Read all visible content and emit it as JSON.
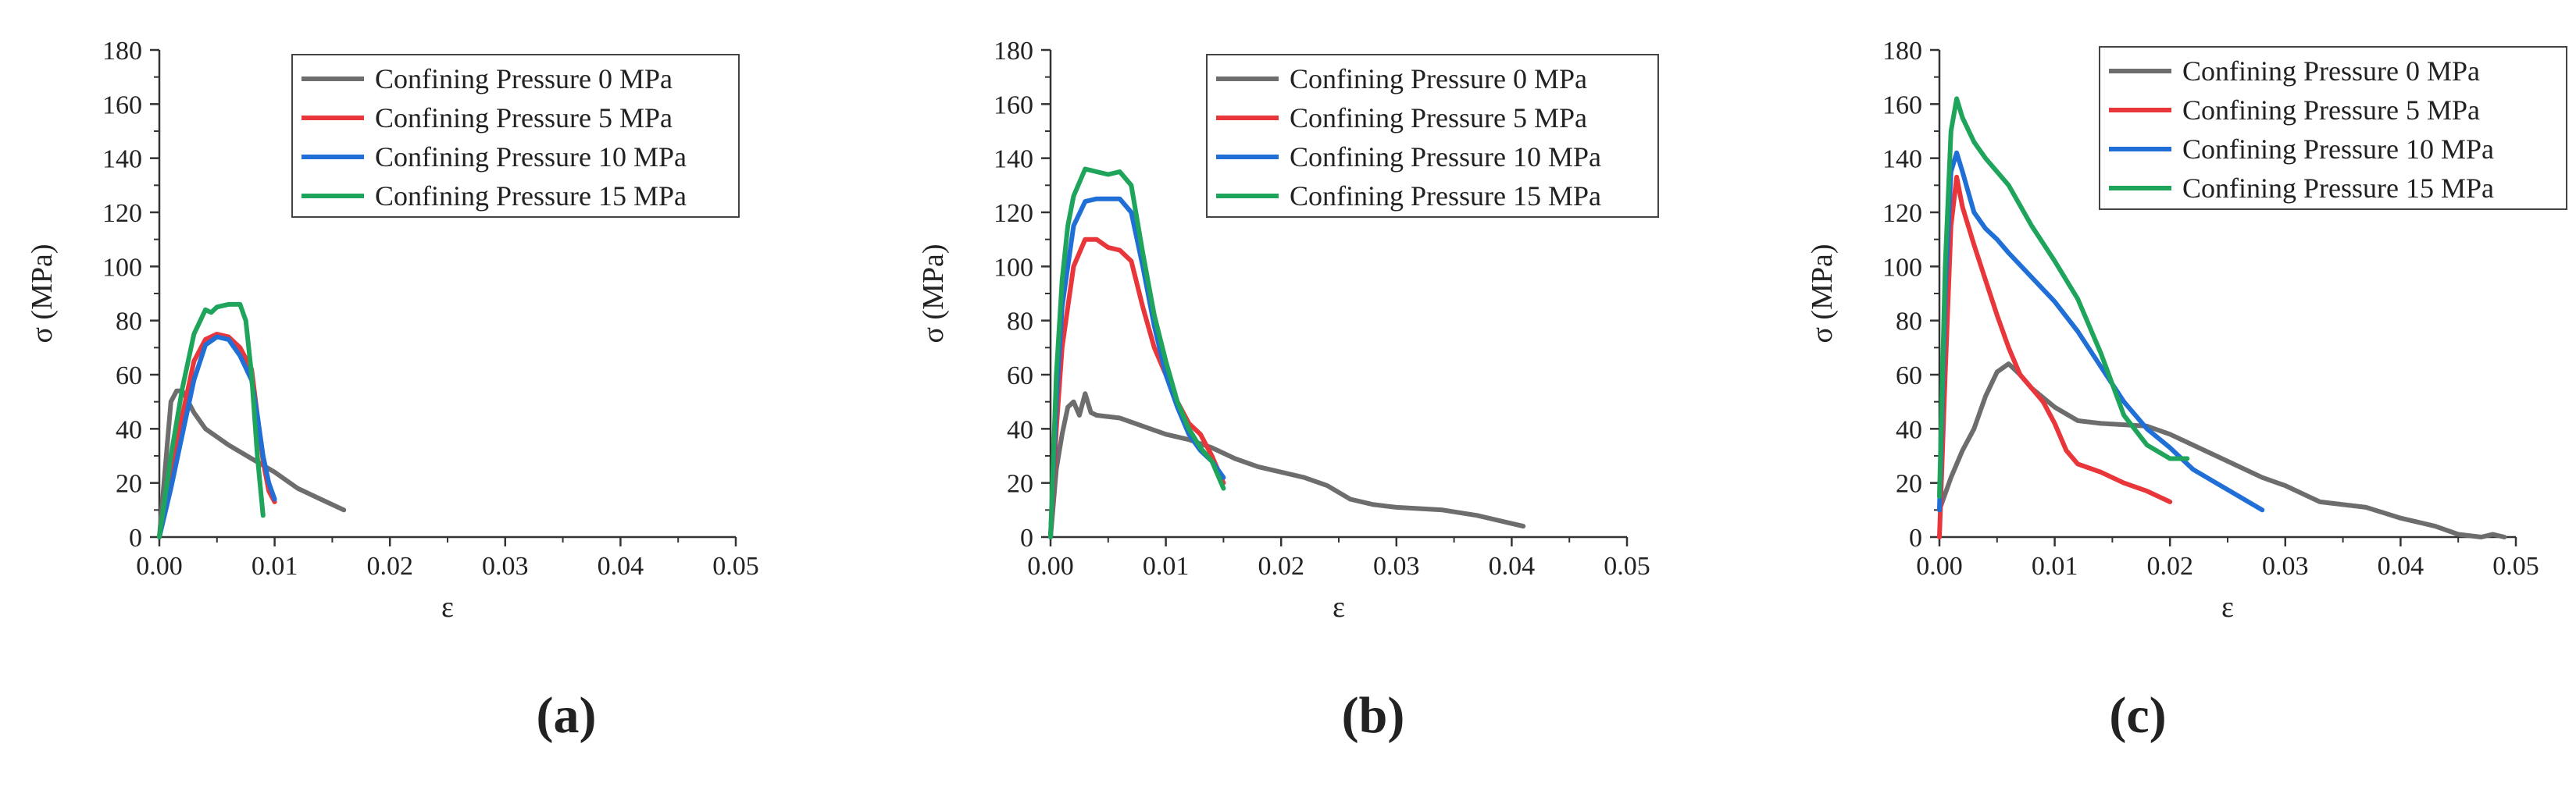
{
  "chart_data": [
    {
      "type": "line",
      "panel_label": "(a)",
      "xlabel": "ε",
      "ylabel": "σ (MPa)",
      "xlim": [
        0,
        0.05
      ],
      "ylim": [
        0,
        180
      ],
      "xticks": [
        "0.00",
        "0.01",
        "0.02",
        "0.03",
        "0.04",
        "0.05"
      ],
      "yticks": [
        "0",
        "20",
        "40",
        "60",
        "80",
        "100",
        "120",
        "140",
        "160",
        "180"
      ],
      "legend_position": "top-right",
      "series": [
        {
          "name": "Confining Pressure 0 MPa",
          "color": "#6d6d6d",
          "points": [
            [
              0,
              0
            ],
            [
              0.0005,
              25
            ],
            [
              0.001,
              50
            ],
            [
              0.0015,
              54
            ],
            [
              0.002,
              54
            ],
            [
              0.003,
              46
            ],
            [
              0.004,
              40
            ],
            [
              0.006,
              34
            ],
            [
              0.008,
              29
            ],
            [
              0.01,
              24
            ],
            [
              0.012,
              18
            ],
            [
              0.014,
              14
            ],
            [
              0.016,
              10
            ]
          ]
        },
        {
          "name": "Confining Pressure 5 MPa",
          "color": "#e8363a",
          "points": [
            [
              0,
              0
            ],
            [
              0.001,
              22
            ],
            [
              0.002,
              45
            ],
            [
              0.003,
              65
            ],
            [
              0.004,
              73
            ],
            [
              0.005,
              75
            ],
            [
              0.006,
              74
            ],
            [
              0.007,
              70
            ],
            [
              0.008,
              62
            ],
            [
              0.0085,
              45
            ],
            [
              0.009,
              28
            ],
            [
              0.0095,
              17
            ],
            [
              0.01,
              13
            ]
          ]
        },
        {
          "name": "Confining Pressure 10 MPa",
          "color": "#1f6fd6",
          "points": [
            [
              0,
              0
            ],
            [
              0.001,
              18
            ],
            [
              0.002,
              38
            ],
            [
              0.003,
              58
            ],
            [
              0.004,
              71
            ],
            [
              0.005,
              74
            ],
            [
              0.006,
              73
            ],
            [
              0.007,
              67
            ],
            [
              0.008,
              58
            ],
            [
              0.0085,
              45
            ],
            [
              0.009,
              30
            ],
            [
              0.0095,
              20
            ],
            [
              0.01,
              14
            ]
          ]
        },
        {
          "name": "Confining Pressure 15 MPa",
          "color": "#1fa55b",
          "points": [
            [
              0,
              0
            ],
            [
              0.001,
              30
            ],
            [
              0.002,
              55
            ],
            [
              0.003,
              75
            ],
            [
              0.004,
              84
            ],
            [
              0.0045,
              83
            ],
            [
              0.005,
              85
            ],
            [
              0.006,
              86
            ],
            [
              0.007,
              86
            ],
            [
              0.0075,
              80
            ],
            [
              0.008,
              60
            ],
            [
              0.0085,
              30
            ],
            [
              0.009,
              8
            ]
          ]
        }
      ]
    },
    {
      "type": "line",
      "panel_label": "(b)",
      "xlabel": "ε",
      "ylabel": "σ (MPa)",
      "xlim": [
        0,
        0.05
      ],
      "ylim": [
        0,
        180
      ],
      "xticks": [
        "0.00",
        "0.01",
        "0.02",
        "0.03",
        "0.04",
        "0.05"
      ],
      "yticks": [
        "0",
        "20",
        "40",
        "60",
        "80",
        "100",
        "120",
        "140",
        "160",
        "180"
      ],
      "legend_position": "top-right",
      "series": [
        {
          "name": "Confining Pressure 0 MPa",
          "color": "#6d6d6d",
          "points": [
            [
              0,
              0
            ],
            [
              0.0005,
              25
            ],
            [
              0.001,
              38
            ],
            [
              0.0015,
              48
            ],
            [
              0.002,
              50
            ],
            [
              0.0025,
              45
            ],
            [
              0.003,
              53
            ],
            [
              0.0035,
              46
            ],
            [
              0.004,
              45
            ],
            [
              0.006,
              44
            ],
            [
              0.008,
              41
            ],
            [
              0.01,
              38
            ],
            [
              0.012,
              36
            ],
            [
              0.014,
              33
            ],
            [
              0.016,
              29
            ],
            [
              0.018,
              26
            ],
            [
              0.02,
              24
            ],
            [
              0.022,
              22
            ],
            [
              0.024,
              19
            ],
            [
              0.026,
              14
            ],
            [
              0.028,
              12
            ],
            [
              0.03,
              11
            ],
            [
              0.034,
              10
            ],
            [
              0.037,
              8
            ],
            [
              0.04,
              5
            ],
            [
              0.041,
              4
            ]
          ]
        },
        {
          "name": "Confining Pressure 5 MPa",
          "color": "#e8363a",
          "points": [
            [
              0,
              0
            ],
            [
              0.0005,
              40
            ],
            [
              0.001,
              70
            ],
            [
              0.0015,
              85
            ],
            [
              0.002,
              100
            ],
            [
              0.003,
              110
            ],
            [
              0.004,
              110
            ],
            [
              0.005,
              107
            ],
            [
              0.006,
              106
            ],
            [
              0.007,
              102
            ],
            [
              0.008,
              85
            ],
            [
              0.009,
              70
            ],
            [
              0.01,
              60
            ],
            [
              0.011,
              50
            ],
            [
              0.012,
              42
            ],
            [
              0.013,
              38
            ],
            [
              0.014,
              30
            ],
            [
              0.015,
              20
            ]
          ]
        },
        {
          "name": "Confining Pressure 10 MPa",
          "color": "#1f6fd6",
          "points": [
            [
              0,
              0
            ],
            [
              0.0005,
              50
            ],
            [
              0.001,
              85
            ],
            [
              0.0015,
              100
            ],
            [
              0.002,
              115
            ],
            [
              0.003,
              124
            ],
            [
              0.004,
              125
            ],
            [
              0.005,
              125
            ],
            [
              0.006,
              125
            ],
            [
              0.007,
              120
            ],
            [
              0.008,
              100
            ],
            [
              0.009,
              78
            ],
            [
              0.01,
              60
            ],
            [
              0.011,
              48
            ],
            [
              0.012,
              38
            ],
            [
              0.013,
              32
            ],
            [
              0.014,
              28
            ],
            [
              0.015,
              22
            ]
          ]
        },
        {
          "name": "Confining Pressure 15 MPa",
          "color": "#1fa55b",
          "points": [
            [
              0,
              0
            ],
            [
              0.0005,
              60
            ],
            [
              0.001,
              95
            ],
            [
              0.0015,
              115
            ],
            [
              0.002,
              126
            ],
            [
              0.003,
              136
            ],
            [
              0.004,
              135
            ],
            [
              0.005,
              134
            ],
            [
              0.006,
              135
            ],
            [
              0.007,
              130
            ],
            [
              0.008,
              105
            ],
            [
              0.009,
              82
            ],
            [
              0.01,
              65
            ],
            [
              0.011,
              50
            ],
            [
              0.012,
              40
            ],
            [
              0.013,
              33
            ],
            [
              0.014,
              28
            ],
            [
              0.015,
              18
            ]
          ]
        }
      ]
    },
    {
      "type": "line",
      "panel_label": "(c)",
      "xlabel": "ε",
      "ylabel": "σ (MPa)",
      "xlim": [
        0,
        0.05
      ],
      "ylim": [
        0,
        180
      ],
      "xticks": [
        "0.00",
        "0.01",
        "0.02",
        "0.03",
        "0.04",
        "0.05"
      ],
      "yticks": [
        "0",
        "20",
        "40",
        "60",
        "80",
        "100",
        "120",
        "140",
        "160",
        "180"
      ],
      "legend_position": "top-right",
      "series": [
        {
          "name": "Confining Pressure 0 MPa",
          "color": "#6d6d6d",
          "points": [
            [
              0,
              10
            ],
            [
              0.001,
              22
            ],
            [
              0.002,
              32
            ],
            [
              0.003,
              40
            ],
            [
              0.004,
              52
            ],
            [
              0.005,
              61
            ],
            [
              0.006,
              64
            ],
            [
              0.007,
              60
            ],
            [
              0.008,
              55
            ],
            [
              0.01,
              48
            ],
            [
              0.012,
              43
            ],
            [
              0.014,
              42
            ],
            [
              0.018,
              41
            ],
            [
              0.02,
              38
            ],
            [
              0.022,
              34
            ],
            [
              0.025,
              28
            ],
            [
              0.028,
              22
            ],
            [
              0.03,
              19
            ],
            [
              0.033,
              13
            ],
            [
              0.037,
              11
            ],
            [
              0.04,
              7
            ],
            [
              0.043,
              4
            ],
            [
              0.045,
              1
            ],
            [
              0.047,
              0
            ],
            [
              0.048,
              1
            ],
            [
              0.049,
              0
            ]
          ]
        },
        {
          "name": "Confining Pressure 5 MPa",
          "color": "#e8363a",
          "points": [
            [
              0,
              0
            ],
            [
              0.0005,
              60
            ],
            [
              0.001,
              115
            ],
            [
              0.0015,
              133
            ],
            [
              0.002,
              122
            ],
            [
              0.003,
              108
            ],
            [
              0.004,
              95
            ],
            [
              0.005,
              82
            ],
            [
              0.006,
              70
            ],
            [
              0.007,
              60
            ],
            [
              0.008,
              55
            ],
            [
              0.009,
              50
            ],
            [
              0.01,
              42
            ],
            [
              0.011,
              32
            ],
            [
              0.012,
              27
            ],
            [
              0.014,
              24
            ],
            [
              0.016,
              20
            ],
            [
              0.018,
              17
            ],
            [
              0.02,
              13
            ]
          ]
        },
        {
          "name": "Confining Pressure 10 MPa",
          "color": "#1f6fd6",
          "points": [
            [
              0,
              10
            ],
            [
              0.0005,
              90
            ],
            [
              0.001,
              135
            ],
            [
              0.0015,
              142
            ],
            [
              0.002,
              135
            ],
            [
              0.003,
              120
            ],
            [
              0.004,
              114
            ],
            [
              0.005,
              110
            ],
            [
              0.006,
              105
            ],
            [
              0.008,
              96
            ],
            [
              0.01,
              87
            ],
            [
              0.012,
              76
            ],
            [
              0.014,
              63
            ],
            [
              0.016,
              50
            ],
            [
              0.018,
              40
            ],
            [
              0.02,
              33
            ],
            [
              0.022,
              25
            ],
            [
              0.024,
              20
            ],
            [
              0.026,
              15
            ],
            [
              0.028,
              10
            ]
          ]
        },
        {
          "name": "Confining Pressure 15 MPa",
          "color": "#1fa55b",
          "points": [
            [
              0,
              15
            ],
            [
              0.0005,
              100
            ],
            [
              0.001,
              150
            ],
            [
              0.0015,
              162
            ],
            [
              0.002,
              155
            ],
            [
              0.003,
              146
            ],
            [
              0.004,
              140
            ],
            [
              0.006,
              130
            ],
            [
              0.008,
              115
            ],
            [
              0.01,
              102
            ],
            [
              0.012,
              88
            ],
            [
              0.014,
              68
            ],
            [
              0.016,
              45
            ],
            [
              0.018,
              34
            ],
            [
              0.02,
              29
            ],
            [
              0.0215,
              29
            ]
          ]
        }
      ]
    }
  ]
}
